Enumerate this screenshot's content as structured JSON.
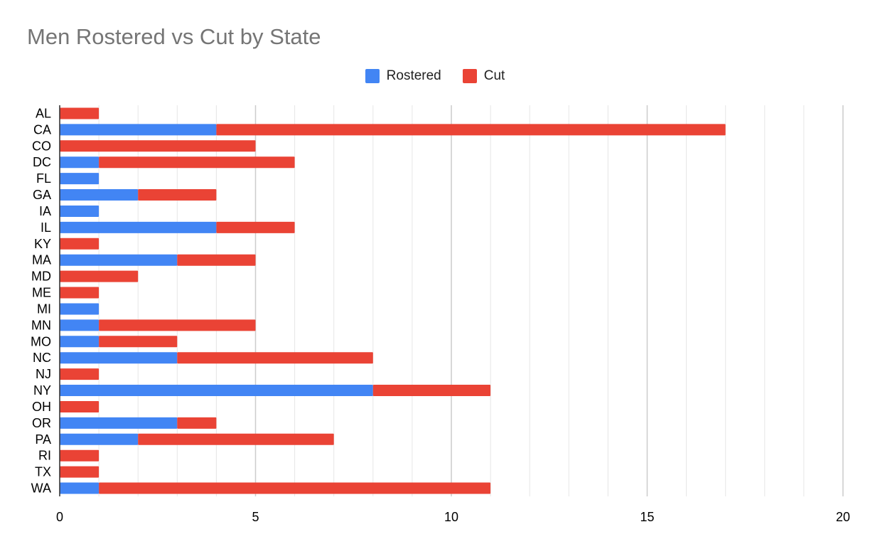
{
  "chart_data": {
    "type": "bar",
    "orientation": "horizontal",
    "stacked": true,
    "title": "Men Rostered vs Cut by State",
    "xlabel": "",
    "ylabel": "",
    "xlim": [
      0,
      20
    ],
    "xticks": [
      0,
      5,
      10,
      15,
      20
    ],
    "grid": true,
    "legend_position": "top",
    "categories": [
      "AL",
      "CA",
      "CO",
      "DC",
      "FL",
      "GA",
      "IA",
      "IL",
      "KY",
      "MA",
      "MD",
      "ME",
      "MI",
      "MN",
      "MO",
      "NC",
      "NJ",
      "NY",
      "OH",
      "OR",
      "PA",
      "RI",
      "TX",
      "WA"
    ],
    "series": [
      {
        "name": "Rostered",
        "color": "#4285f4",
        "values": [
          0,
          4,
          0,
          1,
          1,
          2,
          1,
          4,
          0,
          3,
          0,
          0,
          1,
          1,
          1,
          3,
          0,
          8,
          0,
          3,
          2,
          0,
          0,
          1
        ]
      },
      {
        "name": "Cut",
        "color": "#ea4335",
        "values": [
          1,
          13,
          5,
          5,
          0,
          2,
          0,
          2,
          1,
          2,
          2,
          1,
          0,
          4,
          2,
          5,
          1,
          3,
          1,
          1,
          5,
          1,
          1,
          10
        ]
      }
    ]
  }
}
